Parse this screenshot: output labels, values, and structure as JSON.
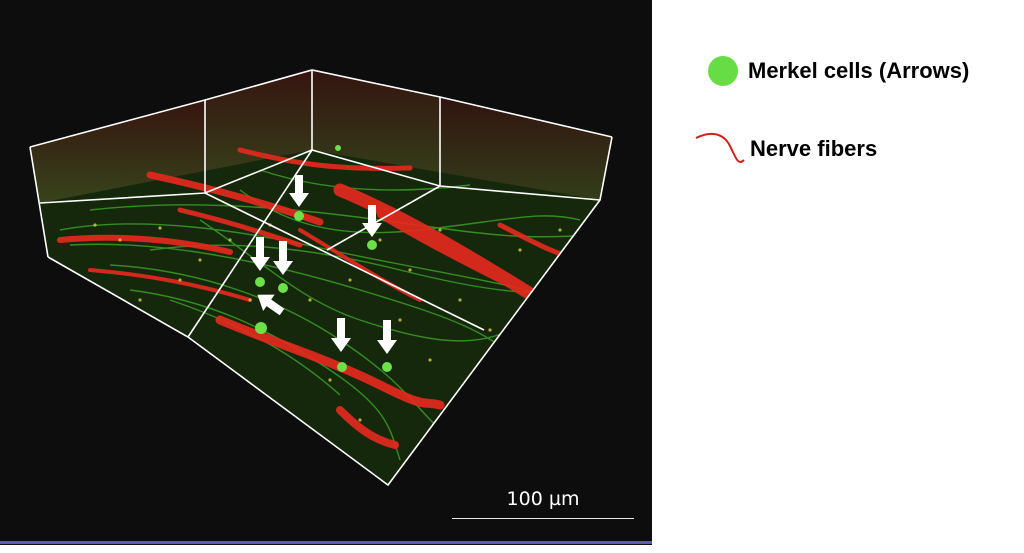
{
  "legend": {
    "items": [
      {
        "label": "Merkel cells (Arrows)",
        "icon": "green-dot-icon",
        "color": "#66dd44"
      },
      {
        "label": "Nerve fibers",
        "icon": "red-squiggle-icon",
        "color": "#d42020"
      }
    ]
  },
  "scale_bar": {
    "label": "100 µm"
  },
  "colors": {
    "background": "#0d0d0d",
    "merkel_cells": "#66dd44",
    "nerve_fibers": "#e8281e",
    "box_edges": "#ffffff"
  }
}
